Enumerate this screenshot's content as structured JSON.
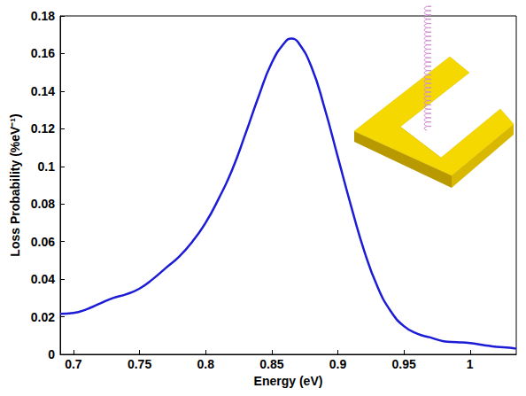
{
  "chart_data": {
    "type": "line",
    "x_label": "Energy (eV)",
    "y_label": "Loss Probability (%eV⁻¹)",
    "x": [
      0.69,
      0.7,
      0.71,
      0.72,
      0.73,
      0.74,
      0.75,
      0.76,
      0.77,
      0.78,
      0.79,
      0.8,
      0.81,
      0.82,
      0.83,
      0.84,
      0.85,
      0.86,
      0.865,
      0.87,
      0.88,
      0.89,
      0.9,
      0.91,
      0.92,
      0.93,
      0.94,
      0.95,
      0.96,
      0.97,
      0.98,
      0.99,
      1.0,
      1.01,
      1.02,
      1.03,
      1.035
    ],
    "values": [
      0.0215,
      0.022,
      0.024,
      0.027,
      0.03,
      0.032,
      0.035,
      0.04,
      0.046,
      0.052,
      0.06,
      0.07,
      0.083,
      0.098,
      0.117,
      0.137,
      0.155,
      0.166,
      0.168,
      0.166,
      0.153,
      0.131,
      0.105,
      0.079,
      0.055,
      0.036,
      0.023,
      0.015,
      0.011,
      0.009,
      0.007,
      0.0065,
      0.006,
      0.005,
      0.004,
      0.0035,
      0.003
    ],
    "color": "#1c1cd6",
    "xlim": [
      0.69,
      1.035
    ],
    "ylim": [
      0,
      0.18
    ],
    "xticks": [
      0.7,
      0.75,
      0.8,
      0.85,
      0.9,
      0.95,
      1
    ],
    "yticks": [
      0,
      0.02,
      0.04,
      0.06,
      0.08,
      0.1,
      0.12,
      0.14,
      0.16,
      0.18
    ],
    "grid": false
  }
}
